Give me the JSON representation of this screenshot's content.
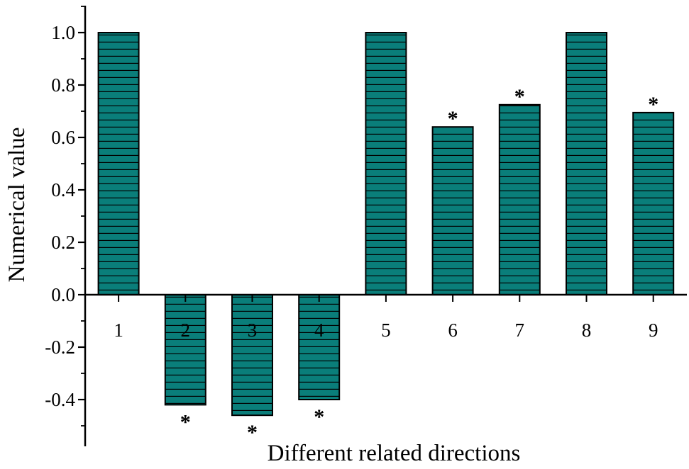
{
  "chart_data": {
    "type": "bar",
    "xlabel": "Different related directions",
    "ylabel": "Numerical value",
    "categories": [
      "1",
      "2",
      "3",
      "4",
      "5",
      "6",
      "7",
      "8",
      "9"
    ],
    "values": [
      1.0,
      -0.42,
      -0.46,
      -0.4,
      1.0,
      0.64,
      0.725,
      1.0,
      0.695
    ],
    "significance_marks": [
      "",
      "*",
      "*",
      "*",
      "",
      "*",
      "*",
      "",
      "*"
    ],
    "ylim": [
      -0.57,
      1.12
    ],
    "yticks": [
      "-0.4",
      "-0.2",
      "0.0",
      "0.2",
      "0.4",
      "0.6",
      "0.8",
      "1.0"
    ],
    "grid": false,
    "legend": "none",
    "bar_fill_color": "#0a7e7a",
    "bar_pattern": "horizontal-lines"
  }
}
